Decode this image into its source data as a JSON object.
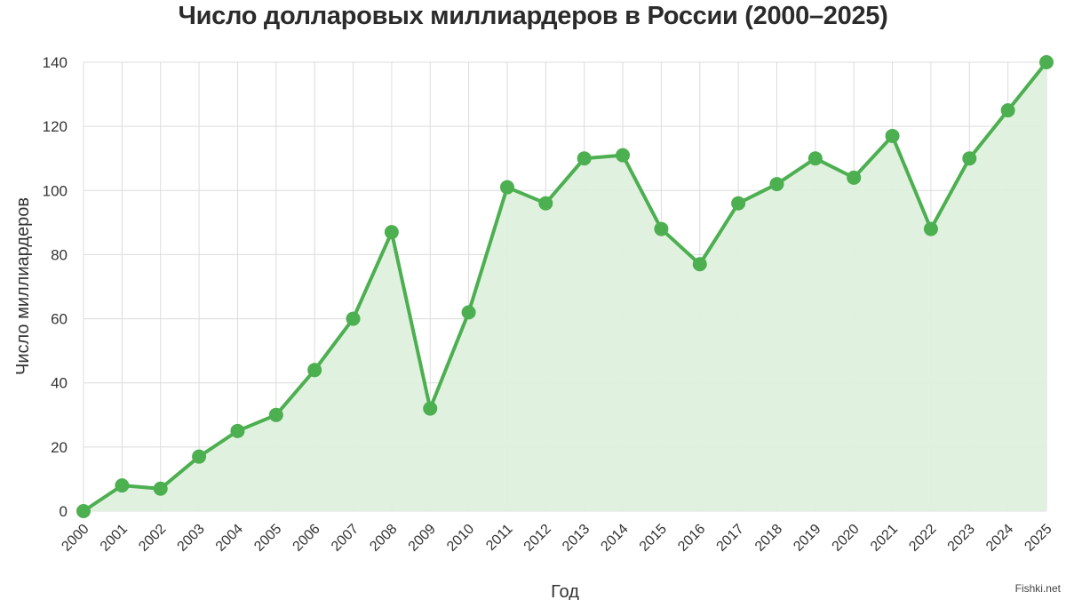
{
  "title": "Число долларовых миллиардеров в России (2000–2025)",
  "watermark": "Fishki.net",
  "colors": {
    "line": "#4caf50",
    "fill": "#dff0dd",
    "grid": "#dcdcdc",
    "axis_text": "#333333"
  },
  "chart_data": {
    "type": "line",
    "title": "Число долларовых миллиардеров в России (2000–2025)",
    "xlabel": "Год",
    "ylabel": "Число миллиардеров",
    "categories": [
      "2000",
      "2001",
      "2002",
      "2003",
      "2004",
      "2005",
      "2006",
      "2007",
      "2008",
      "2009",
      "2010",
      "2011",
      "2012",
      "2013",
      "2014",
      "2015",
      "2016",
      "2017",
      "2018",
      "2019",
      "2020",
      "2021",
      "2022",
      "2023",
      "2024",
      "2025"
    ],
    "series": [
      {
        "values": [
          0,
          8,
          7,
          17,
          25,
          30,
          44,
          60,
          87,
          32,
          62,
          101,
          96,
          110,
          111,
          88,
          77,
          96,
          102,
          110,
          104,
          117,
          88,
          110,
          125,
          140
        ]
      }
    ],
    "ylim": [
      0,
      140
    ],
    "yticks": [
      0,
      20,
      40,
      60,
      80,
      100,
      120,
      140
    ],
    "grid": true,
    "area_fill": true,
    "legend": "none"
  }
}
